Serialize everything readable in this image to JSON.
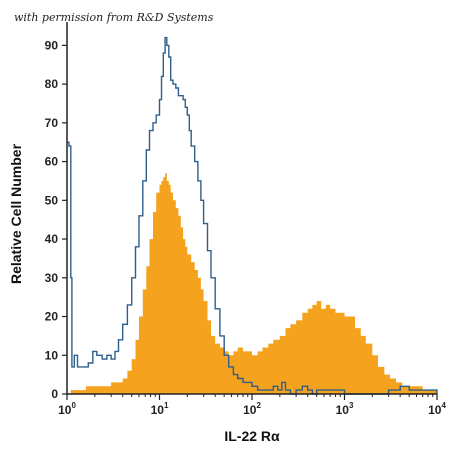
{
  "watermark": "with permission from R&D Systems",
  "chart_data": {
    "type": "area",
    "xlabel": "IL-22 Rα",
    "ylabel": "Relative Cell Number",
    "x_scale": "log",
    "xlim": [
      1,
      10000
    ],
    "ylim": [
      0,
      95
    ],
    "x_ticks": [
      {
        "base": "10",
        "exp": "0",
        "value": 1
      },
      {
        "base": "10",
        "exp": "1",
        "value": 10
      },
      {
        "base": "10",
        "exp": "2",
        "value": 100
      },
      {
        "base": "10",
        "exp": "3",
        "value": 1000
      },
      {
        "base": "10",
        "exp": "4",
        "value": 10000
      }
    ],
    "y_ticks": [
      "0",
      "10",
      "20",
      "30",
      "40",
      "50",
      "60",
      "70",
      "80",
      "90"
    ],
    "y_tick_values": [
      0,
      10,
      20,
      30,
      40,
      50,
      60,
      70,
      80,
      90
    ],
    "colors": {
      "filled": "#f5a21f",
      "outline": "#2f5f8a",
      "axis": "#222222"
    },
    "series": [
      {
        "style": "outline",
        "points": [
          [
            1.0,
            65
          ],
          [
            1.05,
            64
          ],
          [
            1.1,
            30
          ],
          [
            1.13,
            7
          ],
          [
            1.2,
            10
          ],
          [
            1.3,
            7
          ],
          [
            1.5,
            7
          ],
          [
            1.7,
            8
          ],
          [
            1.9,
            11
          ],
          [
            2.1,
            10
          ],
          [
            2.4,
            9
          ],
          [
            2.7,
            10
          ],
          [
            3.0,
            9
          ],
          [
            3.3,
            11
          ],
          [
            3.6,
            14
          ],
          [
            4.0,
            18
          ],
          [
            4.5,
            23
          ],
          [
            5.0,
            30
          ],
          [
            5.5,
            38
          ],
          [
            6.0,
            46
          ],
          [
            6.6,
            55
          ],
          [
            7.2,
            63
          ],
          [
            7.8,
            68
          ],
          [
            8.5,
            70
          ],
          [
            9.2,
            72
          ],
          [
            10.0,
            76
          ],
          [
            10.5,
            82
          ],
          [
            11.0,
            88
          ],
          [
            11.5,
            92
          ],
          [
            12.0,
            90
          ],
          [
            12.6,
            87
          ],
          [
            13.2,
            81
          ],
          [
            14.0,
            80
          ],
          [
            15.0,
            79
          ],
          [
            16.0,
            77
          ],
          [
            17.0,
            77
          ],
          [
            18.0,
            76
          ],
          [
            19.0,
            74
          ],
          [
            20.0,
            72
          ],
          [
            21.0,
            68
          ],
          [
            22.0,
            64
          ],
          [
            24.0,
            60
          ],
          [
            26.0,
            55
          ],
          [
            28.0,
            50
          ],
          [
            30.0,
            44
          ],
          [
            33.0,
            37
          ],
          [
            36.0,
            30
          ],
          [
            40.0,
            22
          ],
          [
            45.0,
            15
          ],
          [
            50.0,
            10
          ],
          [
            56.0,
            7
          ],
          [
            63.0,
            5
          ],
          [
            70.0,
            4
          ],
          [
            80.0,
            3
          ],
          [
            90.0,
            3
          ],
          [
            100.0,
            2
          ],
          [
            115.0,
            1
          ],
          [
            130.0,
            1
          ],
          [
            150.0,
            1
          ],
          [
            170.0,
            2
          ],
          [
            190.0,
            1
          ],
          [
            210.0,
            3
          ],
          [
            230.0,
            1
          ],
          [
            260.0,
            0
          ],
          [
            300.0,
            1
          ],
          [
            350.0,
            2
          ],
          [
            400.0,
            1
          ],
          [
            450.0,
            0
          ],
          [
            500.0,
            1
          ],
          [
            1000.0,
            0
          ],
          [
            2000.0,
            0
          ],
          [
            3000.0,
            1
          ],
          [
            4000.0,
            2
          ],
          [
            5000.0,
            1
          ],
          [
            7000.0,
            1
          ],
          [
            10000.0,
            0
          ]
        ]
      },
      {
        "style": "filled",
        "points": [
          [
            1.0,
            0
          ],
          [
            1.1,
            1
          ],
          [
            1.3,
            1
          ],
          [
            1.6,
            2
          ],
          [
            2.0,
            2
          ],
          [
            2.5,
            2
          ],
          [
            3.0,
            3
          ],
          [
            3.5,
            3
          ],
          [
            4.0,
            4
          ],
          [
            4.5,
            6
          ],
          [
            5.0,
            9
          ],
          [
            5.5,
            14
          ],
          [
            6.0,
            20
          ],
          [
            6.6,
            27
          ],
          [
            7.2,
            33
          ],
          [
            7.8,
            40
          ],
          [
            8.5,
            47
          ],
          [
            9.2,
            52
          ],
          [
            10.0,
            54
          ],
          [
            10.5,
            55
          ],
          [
            11.0,
            56
          ],
          [
            11.5,
            57
          ],
          [
            12.0,
            55
          ],
          [
            12.6,
            54
          ],
          [
            13.2,
            52
          ],
          [
            14.0,
            50
          ],
          [
            15.0,
            48
          ],
          [
            16.0,
            46
          ],
          [
            17.0,
            43
          ],
          [
            18.0,
            40
          ],
          [
            19.0,
            38
          ],
          [
            20.0,
            36
          ],
          [
            22.0,
            34
          ],
          [
            24.0,
            32
          ],
          [
            26.0,
            30
          ],
          [
            28.0,
            27
          ],
          [
            30.0,
            24
          ],
          [
            33.0,
            19
          ],
          [
            36.0,
            15
          ],
          [
            40.0,
            13
          ],
          [
            45.0,
            12
          ],
          [
            50.0,
            11
          ],
          [
            56.0,
            10
          ],
          [
            63.0,
            11
          ],
          [
            70.0,
            12
          ],
          [
            80.0,
            11
          ],
          [
            90.0,
            11
          ],
          [
            100.0,
            10
          ],
          [
            115.0,
            11
          ],
          [
            130.0,
            12
          ],
          [
            150.0,
            13
          ],
          [
            170.0,
            14
          ],
          [
            200.0,
            15
          ],
          [
            230.0,
            17
          ],
          [
            260.0,
            18
          ],
          [
            300.0,
            19
          ],
          [
            350.0,
            21
          ],
          [
            400.0,
            22
          ],
          [
            450.0,
            23
          ],
          [
            500.0,
            24
          ],
          [
            560.0,
            22
          ],
          [
            630.0,
            23
          ],
          [
            700.0,
            22
          ],
          [
            800.0,
            21
          ],
          [
            900.0,
            21
          ],
          [
            1000.0,
            20
          ],
          [
            1150.0,
            20
          ],
          [
            1300.0,
            17
          ],
          [
            1500.0,
            15
          ],
          [
            1700.0,
            13
          ],
          [
            2000.0,
            10
          ],
          [
            2300.0,
            7
          ],
          [
            2700.0,
            5
          ],
          [
            3100.0,
            4
          ],
          [
            3600.0,
            3
          ],
          [
            4200.0,
            2
          ],
          [
            5000.0,
            2
          ],
          [
            6000.0,
            2
          ],
          [
            7000.0,
            1
          ],
          [
            8500.0,
            1
          ],
          [
            10000.0,
            0
          ]
        ]
      }
    ]
  }
}
